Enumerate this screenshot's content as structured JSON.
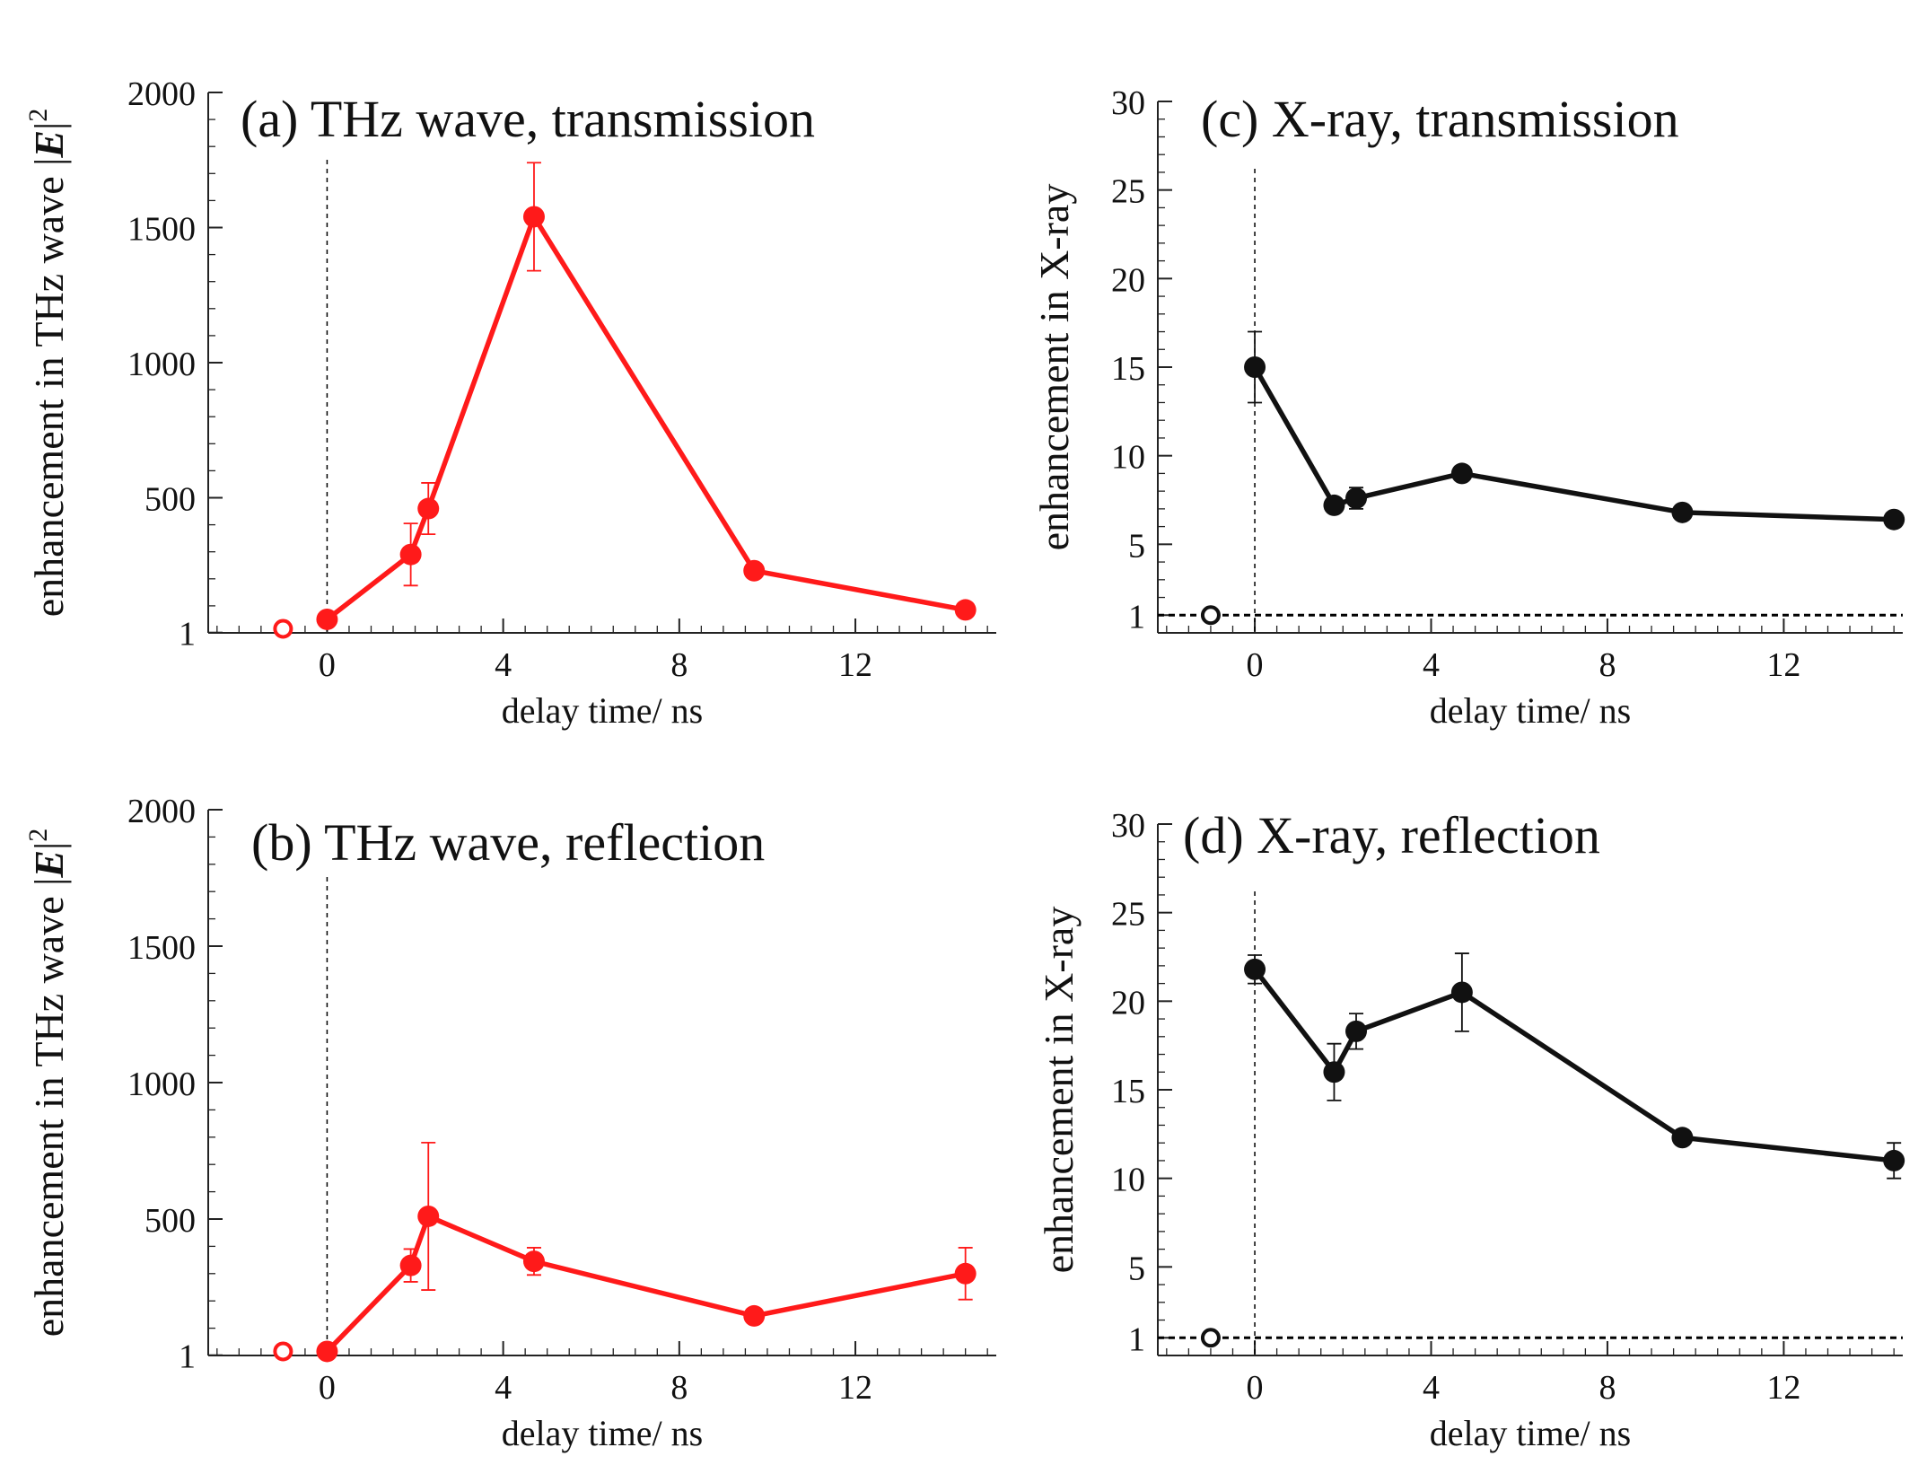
{
  "figure": {
    "description_free": true
  },
  "colors": {
    "thz": "#ff1a1a",
    "xray": "#111111",
    "axis": "#222222"
  },
  "chart_data": [
    {
      "id": "a",
      "type": "line",
      "title": "(a) THz wave, transmission",
      "xlabel": "delay time/ ns",
      "ylabel_prefix": "enhancement in THz wave |",
      "ylabel_symbol": "E",
      "ylabel_suffix": "|",
      "ylabel_power": "2",
      "xlim": [
        -2.7,
        15.2
      ],
      "ylim": [
        0,
        2000
      ],
      "xticks": [
        0,
        4,
        8,
        12
      ],
      "yticks": [
        1,
        500,
        1000,
        1500,
        2000
      ],
      "minor_x_step": 0.5,
      "minor_y_step": 100,
      "vline_x": 0,
      "color_key": "thz",
      "series": {
        "x": [
          0,
          1.9,
          2.3,
          4.7,
          9.7,
          14.5
        ],
        "y": [
          50,
          290,
          460,
          1540,
          230,
          85
        ],
        "err": [
          0,
          115,
          95,
          200,
          0,
          0
        ]
      },
      "reference_point": {
        "x": -1,
        "y": 15
      }
    },
    {
      "id": "c",
      "type": "line",
      "title": "(c) X-ray, transmission",
      "xlabel": "delay time/ ns",
      "ylabel": "enhancement in X-ray",
      "xlim": [
        -2.2,
        14.7
      ],
      "ylim": [
        0,
        30
      ],
      "xticks": [
        0,
        4,
        8,
        12
      ],
      "yticks": [
        1,
        5,
        10,
        15,
        20,
        25,
        30
      ],
      "minor_x_step": 0.5,
      "minor_y_step": 1,
      "vline_x": 0,
      "hline_y": 1,
      "color_key": "xray",
      "series": {
        "x": [
          0,
          1.8,
          2.3,
          4.7,
          9.7,
          14.5
        ],
        "y": [
          15.0,
          7.2,
          7.6,
          9.0,
          6.8,
          6.4
        ],
        "err": [
          2.0,
          0,
          0.6,
          0,
          0,
          0
        ]
      },
      "reference_point": {
        "x": -1,
        "y": 1
      }
    },
    {
      "id": "b",
      "type": "line",
      "title": "(b) THz wave, reflection",
      "xlabel": "delay time/ ns",
      "ylabel_prefix": "enhancement in THz wave |",
      "ylabel_symbol": "E",
      "ylabel_suffix": "|",
      "ylabel_power": "2",
      "xlim": [
        -2.7,
        15.2
      ],
      "ylim": [
        0,
        2000
      ],
      "xticks": [
        0,
        4,
        8,
        12
      ],
      "yticks": [
        1,
        500,
        1000,
        1500,
        2000
      ],
      "minor_x_step": 0.5,
      "minor_y_step": 100,
      "vline_x": 0,
      "color_key": "thz",
      "series": {
        "x": [
          0,
          1.9,
          2.3,
          4.7,
          9.7,
          14.5
        ],
        "y": [
          15,
          330,
          510,
          345,
          145,
          300
        ],
        "err": [
          0,
          60,
          270,
          50,
          0,
          95
        ]
      },
      "reference_point": {
        "x": -1,
        "y": 15
      }
    },
    {
      "id": "d",
      "type": "line",
      "title": "(d) X-ray, reflection",
      "xlabel": "delay time/ ns",
      "ylabel": "enhancement in X-ray",
      "xlim": [
        -2.2,
        14.7
      ],
      "ylim": [
        0,
        30
      ],
      "xticks": [
        0,
        4,
        8,
        12
      ],
      "yticks": [
        1,
        5,
        10,
        15,
        20,
        25,
        30
      ],
      "minor_x_step": 0.5,
      "minor_y_step": 1,
      "vline_x": 0,
      "hline_y": 1,
      "color_key": "xray",
      "series": {
        "x": [
          0,
          1.8,
          2.3,
          4.7,
          9.7,
          14.5
        ],
        "y": [
          21.8,
          16.0,
          18.3,
          20.5,
          12.3,
          11.0
        ],
        "err": [
          0.8,
          1.6,
          1.0,
          2.2,
          0.4,
          1.0
        ]
      },
      "reference_point": {
        "x": -1,
        "y": 1
      }
    }
  ]
}
